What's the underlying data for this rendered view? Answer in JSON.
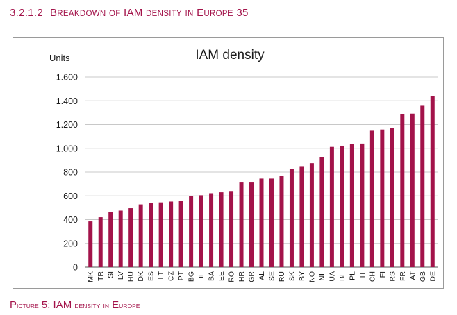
{
  "section_heading": {
    "number": "3.2.1.2",
    "text": "Breakdown of IAM density in Europe 35"
  },
  "caption": "Picture 5: IAM density in Europe",
  "colors": {
    "accent": "#a3134a",
    "bar": "#a3134a",
    "gridline": "#c8c8c8",
    "frame": "#9a9a9a",
    "text": "#1a1a1a"
  },
  "chart_data": {
    "type": "bar",
    "title": "IAM density",
    "ylabel": "Units",
    "xlabel": "",
    "ylim": [
      0,
      1600
    ],
    "yticks": [
      0,
      200,
      400,
      600,
      800,
      1000,
      1200,
      1400,
      1600
    ],
    "ytick_labels": [
      "0",
      "200",
      "400",
      "600",
      "800",
      "1.000",
      "1.200",
      "1.400",
      "1.600"
    ],
    "grid": true,
    "legend": "none",
    "categories": [
      "MK",
      "TR",
      "SI",
      "LV",
      "HU",
      "DK",
      "ES",
      "LT",
      "CZ",
      "PT",
      "BG",
      "IE",
      "BA",
      "EE",
      "RO",
      "HR",
      "GR",
      "AL",
      "SE",
      "RU",
      "SK",
      "BY",
      "NO",
      "NL",
      "UA",
      "BE",
      "PL",
      "IT",
      "CH",
      "FI",
      "RS",
      "FR",
      "AT",
      "GB",
      "DE"
    ],
    "values": [
      385,
      420,
      462,
      476,
      496,
      528,
      540,
      545,
      552,
      560,
      598,
      605,
      622,
      630,
      635,
      712,
      712,
      745,
      745,
      770,
      825,
      850,
      875,
      925,
      1012,
      1022,
      1035,
      1040,
      1148,
      1158,
      1168,
      1285,
      1292,
      1358,
      1440
    ]
  }
}
